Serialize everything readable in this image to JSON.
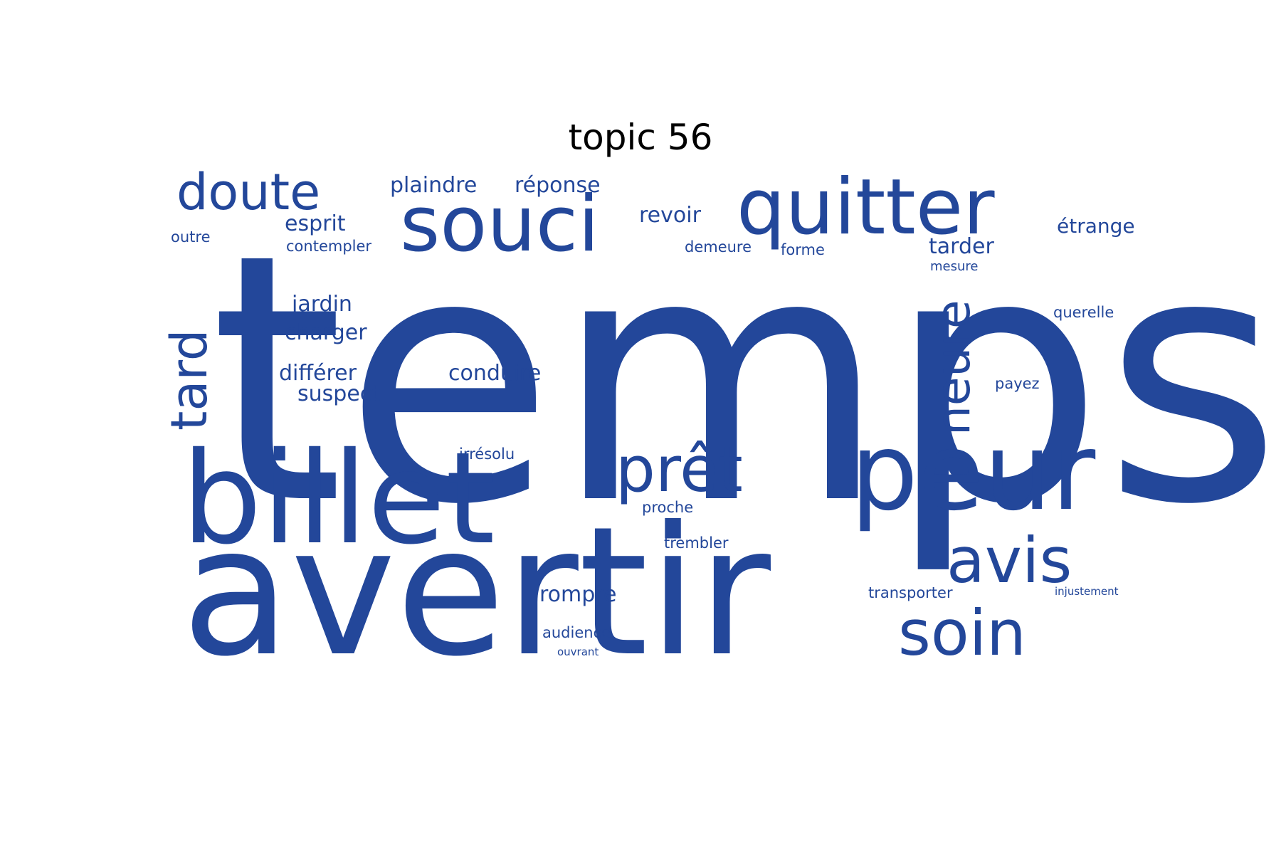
{
  "title": "topic 56",
  "color": "#23479a",
  "words": [
    "temps",
    "avertir",
    "billet",
    "peur",
    "quitter",
    "souci",
    "prêt",
    "avis",
    "soin",
    "doute",
    "tard",
    "heure",
    "plaindre",
    "réponse",
    "revoir",
    "esprit",
    "étrange",
    "outre",
    "contempler",
    "demeure",
    "forme",
    "tarder",
    "mesure",
    "jardin",
    "charger",
    "querelle",
    "différer",
    "conduire",
    "suspect",
    "payez",
    "irrésolu",
    "proche",
    "trembler",
    "rompre",
    "transporter",
    "injustement",
    "audience",
    "ouvrant"
  ]
}
